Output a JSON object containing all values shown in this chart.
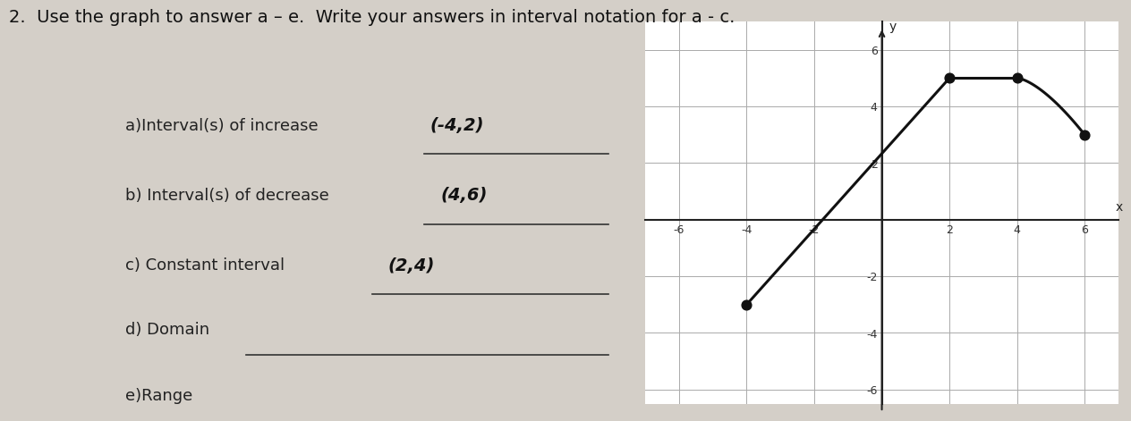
{
  "title": "2.  Use the graph to answer a – e.  Write your answers in interval notation for a - c.",
  "background_color": "#d4cfc8",
  "box_background": "#e8e4de",
  "grid_color": "#aaaaaa",
  "axis_color": "#222222",
  "line_color": "#111111",
  "xlim": [
    -7,
    7
  ],
  "ylim": [
    -6.5,
    7
  ],
  "xticks": [
    -6,
    -4,
    -2,
    0,
    2,
    4,
    6
  ],
  "yticks": [
    -6,
    -4,
    -2,
    0,
    2,
    4,
    6
  ],
  "key_points": [
    [
      -4,
      -3
    ],
    [
      2,
      5
    ],
    [
      4,
      5
    ],
    [
      6,
      3
    ]
  ],
  "dot_color": "#111111",
  "dot_size": 60,
  "font_size_labels": 13,
  "font_size_title": 14,
  "underline_color": "#333333"
}
